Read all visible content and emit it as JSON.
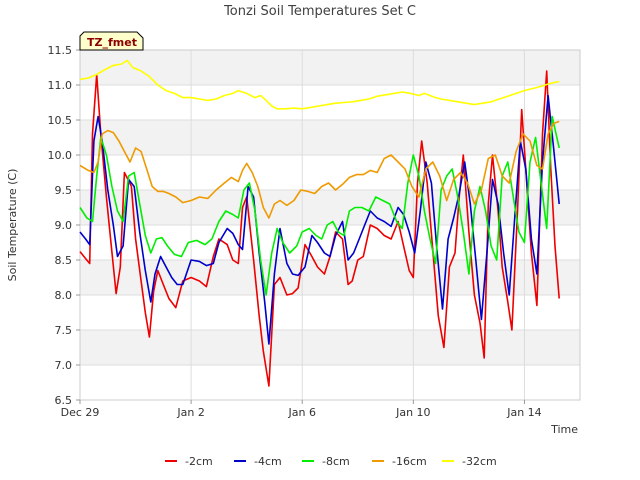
{
  "chart_data": {
    "type": "line",
    "title": "Tonzi Soil Temperatures Set C",
    "xlabel": "Time",
    "ylabel": "Soil Temperature (C)",
    "badge": "TZ_fmet",
    "xlim": [
      0,
      18
    ],
    "ylim": [
      6.5,
      11.5
    ],
    "x_ticks": [
      {
        "value": 0,
        "label": "Dec 29"
      },
      {
        "value": 4,
        "label": "Jan 2"
      },
      {
        "value": 8,
        "label": "Jan 6"
      },
      {
        "value": 12,
        "label": "Jan 10"
      },
      {
        "value": 16,
        "label": "Jan 14"
      }
    ],
    "y_ticks": [
      {
        "value": 6.5,
        "label": "6.5"
      },
      {
        "value": 7.0,
        "label": "7.0"
      },
      {
        "value": 7.5,
        "label": "7.5"
      },
      {
        "value": 8.0,
        "label": "8.0"
      },
      {
        "value": 8.5,
        "label": "8.5"
      },
      {
        "value": 9.0,
        "label": "9.0"
      },
      {
        "value": 9.5,
        "label": "9.5"
      },
      {
        "value": 10.0,
        "label": "10.0"
      },
      {
        "value": 10.5,
        "label": "10.5"
      },
      {
        "value": 11.0,
        "label": "11.0"
      },
      {
        "value": 11.5,
        "label": "11.5"
      }
    ],
    "grid": true,
    "legend_position": "bottom",
    "series": [
      {
        "name": "-2cm",
        "color": "#ee0000",
        "x": [
          0,
          0.2,
          0.35,
          0.45,
          0.6,
          0.75,
          0.95,
          1.1,
          1.3,
          1.45,
          1.6,
          1.85,
          2.0,
          2.2,
          2.35,
          2.5,
          2.65,
          2.8,
          3.0,
          3.2,
          3.45,
          3.7,
          4.0,
          4.3,
          4.55,
          4.8,
          5.0,
          5.3,
          5.5,
          5.7,
          5.85,
          6.0,
          6.25,
          6.45,
          6.6,
          6.8,
          7.0,
          7.2,
          7.45,
          7.65,
          7.85,
          8.1,
          8.35,
          8.55,
          8.8,
          9.0,
          9.2,
          9.45,
          9.65,
          9.8,
          10.0,
          10.2,
          10.45,
          10.7,
          10.95,
          11.2,
          11.45,
          11.65,
          11.85,
          12.0,
          12.15,
          12.3,
          12.5,
          12.75,
          12.9,
          13.1,
          13.3,
          13.5,
          13.65,
          13.8,
          14.0,
          14.2,
          14.4,
          14.55,
          14.7,
          14.85,
          15.05,
          15.2,
          15.4,
          15.55,
          15.75,
          15.9,
          16.05,
          16.25,
          16.45,
          16.65,
          16.8,
          16.95,
          17.1,
          17.25
        ],
        "y": [
          8.62,
          8.52,
          8.45,
          10.3,
          11.15,
          10.3,
          9.4,
          8.8,
          8.02,
          8.4,
          9.75,
          9.55,
          8.8,
          8.2,
          7.75,
          7.4,
          8.05,
          8.35,
          8.15,
          7.95,
          7.82,
          8.2,
          8.25,
          8.2,
          8.12,
          8.55,
          8.8,
          8.72,
          8.5,
          8.45,
          9.25,
          9.4,
          8.5,
          7.7,
          7.2,
          6.7,
          8.15,
          8.25,
          8.0,
          8.02,
          8.1,
          8.72,
          8.55,
          8.4,
          8.3,
          8.55,
          8.9,
          8.8,
          8.15,
          8.2,
          8.5,
          8.55,
          9.0,
          8.95,
          8.85,
          8.8,
          9.05,
          8.7,
          8.35,
          8.25,
          9.6,
          10.2,
          9.6,
          8.4,
          7.7,
          7.25,
          8.4,
          8.6,
          9.4,
          10.0,
          8.9,
          8.0,
          7.6,
          7.1,
          9.3,
          10.0,
          9.2,
          8.4,
          7.9,
          7.5,
          9.2,
          10.65,
          9.8,
          8.6,
          7.85,
          10.3,
          11.2,
          9.8,
          8.7,
          7.95
        ]
      },
      {
        "name": "-4cm",
        "color": "#0000cc",
        "x": [
          0,
          0.2,
          0.35,
          0.5,
          0.65,
          0.8,
          1.0,
          1.2,
          1.35,
          1.55,
          1.75,
          1.95,
          2.15,
          2.35,
          2.55,
          2.7,
          2.9,
          3.1,
          3.3,
          3.5,
          3.7,
          4.0,
          4.3,
          4.55,
          4.8,
          5.0,
          5.3,
          5.5,
          5.7,
          5.85,
          6.05,
          6.25,
          6.45,
          6.65,
          6.8,
          7.0,
          7.2,
          7.45,
          7.65,
          7.85,
          8.1,
          8.35,
          8.55,
          8.8,
          9.0,
          9.2,
          9.45,
          9.65,
          9.85,
          10.05,
          10.25,
          10.45,
          10.7,
          10.95,
          11.2,
          11.45,
          11.65,
          11.85,
          12.05,
          12.25,
          12.45,
          12.65,
          12.85,
          13.05,
          13.25,
          13.45,
          13.65,
          13.85,
          14.05,
          14.25,
          14.45,
          14.65,
          14.85,
          15.05,
          15.25,
          15.45,
          15.65,
          15.85,
          16.05,
          16.25,
          16.45,
          16.65,
          16.85,
          17.05,
          17.25
        ],
        "y": [
          8.9,
          8.8,
          8.72,
          10.2,
          10.55,
          10.2,
          9.5,
          9.0,
          8.55,
          8.7,
          9.65,
          9.55,
          8.9,
          8.35,
          7.9,
          8.3,
          8.55,
          8.4,
          8.25,
          8.15,
          8.15,
          8.5,
          8.48,
          8.42,
          8.45,
          8.75,
          8.95,
          8.88,
          8.72,
          8.65,
          9.55,
          9.4,
          8.6,
          7.9,
          7.3,
          8.3,
          8.95,
          8.45,
          8.3,
          8.28,
          8.4,
          8.85,
          8.75,
          8.6,
          8.55,
          8.85,
          9.05,
          8.5,
          8.6,
          8.8,
          9.0,
          9.2,
          9.1,
          9.05,
          8.98,
          9.25,
          9.15,
          8.9,
          8.6,
          9.2,
          9.9,
          9.6,
          8.65,
          7.8,
          8.8,
          9.1,
          9.45,
          9.9,
          9.3,
          8.5,
          7.65,
          8.6,
          9.65,
          9.3,
          8.6,
          8.0,
          9.1,
          10.2,
          9.8,
          8.8,
          8.3,
          9.9,
          10.85,
          10.1,
          9.3
        ]
      },
      {
        "name": "-8cm",
        "color": "#00ee00",
        "x": [
          0,
          0.25,
          0.45,
          0.6,
          0.75,
          0.95,
          1.15,
          1.35,
          1.55,
          1.75,
          1.95,
          2.15,
          2.35,
          2.55,
          2.75,
          2.95,
          3.15,
          3.4,
          3.65,
          3.9,
          4.2,
          4.5,
          4.75,
          5.0,
          5.25,
          5.5,
          5.7,
          5.9,
          6.1,
          6.3,
          6.5,
          6.7,
          6.9,
          7.1,
          7.3,
          7.55,
          7.8,
          8.0,
          8.25,
          8.5,
          8.7,
          8.9,
          9.1,
          9.3,
          9.5,
          9.7,
          9.9,
          10.15,
          10.4,
          10.65,
          10.9,
          11.15,
          11.4,
          11.6,
          11.8,
          12.0,
          12.2,
          12.4,
          12.6,
          12.8,
          13.0,
          13.2,
          13.4,
          13.6,
          13.8,
          14.0,
          14.2,
          14.4,
          14.6,
          14.8,
          15.0,
          15.2,
          15.4,
          15.6,
          15.8,
          16.0,
          16.2,
          16.4,
          16.6,
          16.8,
          17.0,
          17.25
        ],
        "y": [
          9.25,
          9.1,
          9.05,
          9.7,
          10.25,
          10.0,
          9.55,
          9.2,
          9.05,
          9.7,
          9.75,
          9.3,
          8.85,
          8.6,
          8.8,
          8.82,
          8.7,
          8.58,
          8.55,
          8.75,
          8.78,
          8.72,
          8.8,
          9.05,
          9.2,
          9.15,
          9.1,
          9.5,
          9.6,
          9.2,
          8.5,
          8.0,
          8.6,
          8.95,
          8.75,
          8.6,
          8.7,
          8.9,
          8.95,
          8.85,
          8.8,
          9.0,
          9.05,
          8.9,
          8.85,
          9.2,
          9.25,
          9.25,
          9.2,
          9.4,
          9.35,
          9.3,
          9.05,
          8.95,
          9.6,
          10.0,
          9.7,
          9.2,
          8.8,
          8.45,
          9.5,
          9.7,
          9.8,
          9.4,
          8.9,
          8.3,
          9.2,
          9.55,
          9.2,
          8.7,
          8.5,
          9.7,
          9.9,
          9.4,
          8.9,
          8.75,
          9.9,
          10.25,
          9.6,
          8.95,
          10.55,
          10.1
        ]
      },
      {
        "name": "-16cm",
        "color": "#ee9a00",
        "x": [
          0,
          0.3,
          0.5,
          0.65,
          0.8,
          1.0,
          1.2,
          1.4,
          1.6,
          1.8,
          2.0,
          2.2,
          2.4,
          2.6,
          2.8,
          3.0,
          3.2,
          3.45,
          3.7,
          4.0,
          4.3,
          4.6,
          4.9,
          5.2,
          5.45,
          5.7,
          5.85,
          6.0,
          6.2,
          6.4,
          6.6,
          6.8,
          7.0,
          7.2,
          7.45,
          7.7,
          7.95,
          8.2,
          8.45,
          8.7,
          8.95,
          9.2,
          9.45,
          9.7,
          9.95,
          10.2,
          10.45,
          10.7,
          10.95,
          11.2,
          11.45,
          11.7,
          11.95,
          12.2,
          12.45,
          12.7,
          12.95,
          13.2,
          13.45,
          13.7,
          13.95,
          14.2,
          14.45,
          14.7,
          14.95,
          15.2,
          15.45,
          15.7,
          15.95,
          16.2,
          16.45,
          16.65,
          16.85,
          17.05,
          17.25
        ],
        "y": [
          9.85,
          9.78,
          9.75,
          9.9,
          10.3,
          10.35,
          10.32,
          10.2,
          10.05,
          9.9,
          10.1,
          10.05,
          9.8,
          9.55,
          9.48,
          9.48,
          9.45,
          9.4,
          9.32,
          9.35,
          9.4,
          9.38,
          9.5,
          9.6,
          9.68,
          9.62,
          9.78,
          9.88,
          9.75,
          9.55,
          9.25,
          9.1,
          9.3,
          9.35,
          9.28,
          9.35,
          9.5,
          9.48,
          9.45,
          9.55,
          9.6,
          9.5,
          9.58,
          9.68,
          9.72,
          9.72,
          9.78,
          9.75,
          9.95,
          10.0,
          9.9,
          9.8,
          9.55,
          9.4,
          9.8,
          9.9,
          9.7,
          9.35,
          9.65,
          9.75,
          9.6,
          9.3,
          9.5,
          9.95,
          10.0,
          9.7,
          9.6,
          10.05,
          10.3,
          10.2,
          9.85,
          9.8,
          10.3,
          10.45,
          10.48
        ]
      },
      {
        "name": "-32cm",
        "color": "#ffff00",
        "x": [
          0,
          0.3,
          0.6,
          0.9,
          1.2,
          1.5,
          1.7,
          1.9,
          2.2,
          2.5,
          2.8,
          3.1,
          3.4,
          3.7,
          4.0,
          4.3,
          4.6,
          4.9,
          5.2,
          5.5,
          5.7,
          5.85,
          6.0,
          6.15,
          6.3,
          6.5,
          6.7,
          6.9,
          7.1,
          7.4,
          7.7,
          8.0,
          8.3,
          8.6,
          8.9,
          9.2,
          9.5,
          9.8,
          10.1,
          10.4,
          10.7,
          11.0,
          11.3,
          11.6,
          11.9,
          12.2,
          12.4,
          12.6,
          12.8,
          13.0,
          13.3,
          13.6,
          13.9,
          14.2,
          14.5,
          14.8,
          15.1,
          15.4,
          15.7,
          16.0,
          16.3,
          16.6,
          16.9,
          17.25
        ],
        "y": [
          11.08,
          11.1,
          11.15,
          11.22,
          11.28,
          11.3,
          11.35,
          11.25,
          11.2,
          11.12,
          11.0,
          10.92,
          10.88,
          10.82,
          10.82,
          10.8,
          10.78,
          10.8,
          10.85,
          10.88,
          10.92,
          10.9,
          10.88,
          10.85,
          10.82,
          10.85,
          10.78,
          10.7,
          10.66,
          10.66,
          10.67,
          10.66,
          10.68,
          10.7,
          10.72,
          10.74,
          10.75,
          10.76,
          10.78,
          10.8,
          10.84,
          10.86,
          10.88,
          10.9,
          10.88,
          10.85,
          10.88,
          10.85,
          10.82,
          10.8,
          10.78,
          10.76,
          10.74,
          10.72,
          10.74,
          10.76,
          10.8,
          10.84,
          10.88,
          10.92,
          10.95,
          10.98,
          11.02,
          11.05
        ]
      }
    ]
  }
}
